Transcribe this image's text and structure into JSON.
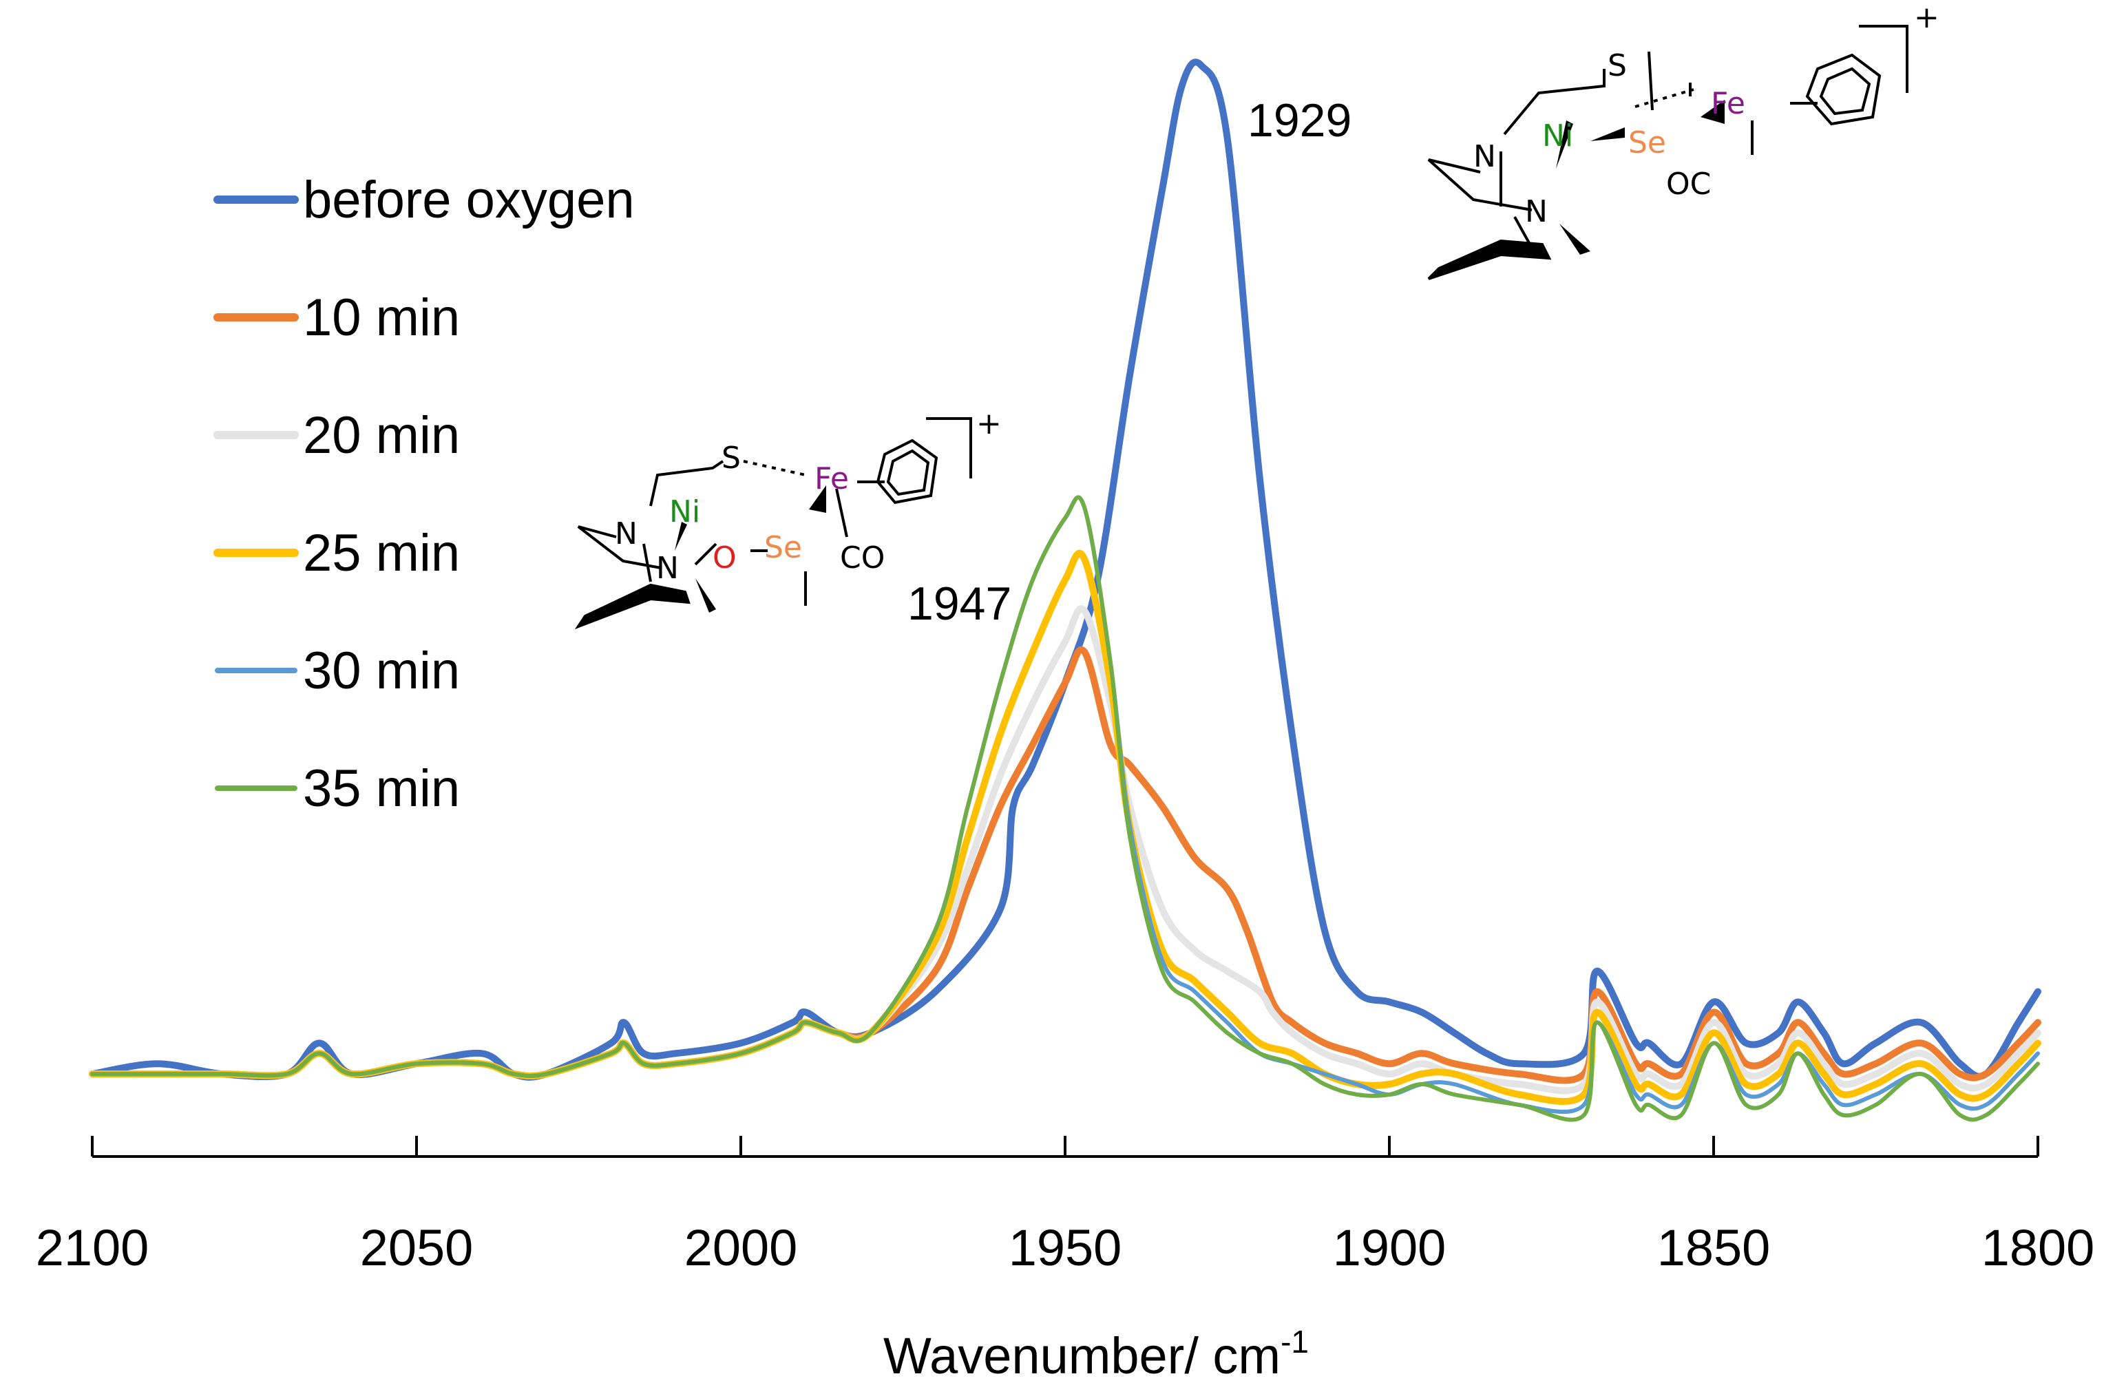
{
  "chart_data": {
    "type": "line",
    "title": "",
    "xlabel": "Wavenumber/ cm",
    "xlabel_superscript": "-1",
    "ylabel": "",
    "xlim": [
      2100,
      1800
    ],
    "x_reversed": true,
    "xticks": [
      2100,
      2050,
      2000,
      1950,
      1900,
      1850,
      1800
    ],
    "ylim": [
      0,
      1.0
    ],
    "grid": false,
    "legend_position": "top-left",
    "annotations": [
      {
        "text": "1929",
        "x": 1929
      },
      {
        "text": "1947",
        "x": 1947
      }
    ],
    "series": [
      {
        "name": "before oxygen",
        "color": "#4472C4",
        "x": [
          2100,
          2090,
          2080,
          2070,
          2065,
          2060,
          2050,
          2040,
          2035,
          2030,
          2020,
          2018,
          2015,
          2010,
          2000,
          1992,
          1990,
          1985,
          1980,
          1970,
          1960,
          1958,
          1955,
          1950,
          1945,
          1940,
          1935,
          1932,
          1929,
          1925,
          1920,
          1915,
          1910,
          1905,
          1900,
          1895,
          1890,
          1885,
          1880,
          1870,
          1868,
          1862,
          1860,
          1855,
          1850,
          1845,
          1840,
          1837,
          1833,
          1830,
          1825,
          1818,
          1812,
          1808,
          1803,
          1800
        ],
        "y": [
          0.02,
          0.03,
          0.02,
          0.02,
          0.05,
          0.02,
          0.03,
          0.04,
          0.02,
          0.02,
          0.05,
          0.07,
          0.04,
          0.04,
          0.05,
          0.07,
          0.08,
          0.06,
          0.06,
          0.1,
          0.18,
          0.28,
          0.32,
          0.4,
          0.5,
          0.7,
          0.88,
          0.98,
          1.0,
          0.93,
          0.6,
          0.35,
          0.16,
          0.1,
          0.09,
          0.08,
          0.06,
          0.04,
          0.03,
          0.04,
          0.12,
          0.05,
          0.05,
          0.03,
          0.09,
          0.05,
          0.06,
          0.09,
          0.06,
          0.03,
          0.05,
          0.07,
          0.03,
          0.02,
          0.07,
          0.1
        ]
      },
      {
        "name": "10 min",
        "color": "#ED7D31",
        "x": [
          2100,
          2090,
          2080,
          2070,
          2065,
          2060,
          2050,
          2040,
          2035,
          2030,
          2020,
          2018,
          2015,
          2010,
          2000,
          1992,
          1990,
          1985,
          1980,
          1970,
          1965,
          1960,
          1955,
          1950,
          1947,
          1943,
          1940,
          1935,
          1930,
          1925,
          1922,
          1918,
          1915,
          1910,
          1905,
          1900,
          1895,
          1890,
          1880,
          1870,
          1868,
          1862,
          1860,
          1855,
          1850,
          1845,
          1840,
          1837,
          1833,
          1830,
          1825,
          1818,
          1812,
          1808,
          1803,
          1800
        ],
        "y": [
          0.02,
          0.02,
          0.02,
          0.02,
          0.04,
          0.02,
          0.03,
          0.03,
          0.02,
          0.02,
          0.04,
          0.05,
          0.03,
          0.03,
          0.04,
          0.06,
          0.07,
          0.06,
          0.06,
          0.12,
          0.2,
          0.28,
          0.34,
          0.4,
          0.43,
          0.34,
          0.32,
          0.28,
          0.23,
          0.2,
          0.16,
          0.09,
          0.07,
          0.05,
          0.04,
          0.03,
          0.04,
          0.03,
          0.02,
          0.02,
          0.1,
          0.03,
          0.03,
          0.02,
          0.08,
          0.03,
          0.04,
          0.07,
          0.04,
          0.02,
          0.03,
          0.05,
          0.02,
          0.02,
          0.05,
          0.07
        ]
      },
      {
        "name": "20 min",
        "color": "#E4E4E4",
        "x": [
          2100,
          2090,
          2080,
          2070,
          2065,
          2060,
          2050,
          2040,
          2035,
          2030,
          2020,
          2018,
          2015,
          2010,
          2000,
          1992,
          1990,
          1985,
          1980,
          1970,
          1965,
          1960,
          1955,
          1950,
          1947,
          1943,
          1940,
          1935,
          1930,
          1925,
          1920,
          1918,
          1915,
          1910,
          1905,
          1900,
          1895,
          1890,
          1880,
          1870,
          1868,
          1862,
          1860,
          1855,
          1850,
          1845,
          1840,
          1837,
          1833,
          1830,
          1825,
          1818,
          1812,
          1808,
          1803,
          1800
        ],
        "y": [
          0.02,
          0.02,
          0.02,
          0.02,
          0.04,
          0.02,
          0.03,
          0.03,
          0.02,
          0.02,
          0.04,
          0.05,
          0.03,
          0.03,
          0.04,
          0.06,
          0.07,
          0.06,
          0.06,
          0.14,
          0.22,
          0.31,
          0.38,
          0.44,
          0.47,
          0.38,
          0.28,
          0.18,
          0.14,
          0.12,
          0.1,
          0.08,
          0.06,
          0.04,
          0.03,
          0.02,
          0.03,
          0.02,
          0.01,
          0.01,
          0.09,
          0.02,
          0.02,
          0.01,
          0.07,
          0.02,
          0.03,
          0.06,
          0.03,
          0.01,
          0.02,
          0.04,
          0.01,
          0.01,
          0.04,
          0.06
        ]
      },
      {
        "name": "25 min",
        "color": "#FFC000",
        "x": [
          2100,
          2090,
          2080,
          2070,
          2065,
          2060,
          2050,
          2040,
          2035,
          2030,
          2020,
          2018,
          2015,
          2010,
          2000,
          1992,
          1990,
          1985,
          1980,
          1970,
          1965,
          1960,
          1955,
          1950,
          1947,
          1943,
          1940,
          1935,
          1930,
          1925,
          1920,
          1915,
          1910,
          1905,
          1900,
          1895,
          1890,
          1880,
          1870,
          1868,
          1862,
          1860,
          1855,
          1850,
          1845,
          1840,
          1837,
          1833,
          1830,
          1825,
          1818,
          1812,
          1808,
          1803,
          1800
        ],
        "y": [
          0.02,
          0.02,
          0.02,
          0.02,
          0.04,
          0.02,
          0.03,
          0.03,
          0.02,
          0.02,
          0.04,
          0.05,
          0.03,
          0.03,
          0.04,
          0.06,
          0.07,
          0.06,
          0.06,
          0.15,
          0.25,
          0.35,
          0.43,
          0.5,
          0.52,
          0.4,
          0.26,
          0.14,
          0.11,
          0.08,
          0.05,
          0.04,
          0.02,
          0.01,
          0.01,
          0.02,
          0.02,
          0.0,
          0.0,
          0.08,
          0.01,
          0.01,
          0.0,
          0.06,
          0.01,
          0.02,
          0.05,
          0.02,
          0.0,
          0.01,
          0.03,
          0.0,
          0.0,
          0.03,
          0.05
        ]
      },
      {
        "name": "30 min",
        "color": "#5B9BD5",
        "x": [
          2100,
          2090,
          2080,
          2070,
          2065,
          2060,
          2050,
          2040,
          2035,
          2030,
          2020,
          2018,
          2015,
          2010,
          2000,
          1992,
          1990,
          1985,
          1980,
          1970,
          1965,
          1960,
          1955,
          1950,
          1947,
          1943,
          1940,
          1935,
          1930,
          1925,
          1920,
          1915,
          1910,
          1905,
          1900,
          1895,
          1890,
          1880,
          1870,
          1868,
          1862,
          1860,
          1855,
          1850,
          1845,
          1840,
          1837,
          1833,
          1830,
          1825,
          1818,
          1812,
          1808,
          1803,
          1800
        ],
        "y": [
          0.02,
          0.02,
          0.02,
          0.02,
          0.04,
          0.02,
          0.03,
          0.03,
          0.02,
          0.02,
          0.04,
          0.05,
          0.03,
          0.03,
          0.04,
          0.06,
          0.07,
          0.06,
          0.06,
          0.16,
          0.28,
          0.4,
          0.5,
          0.56,
          0.57,
          0.42,
          0.26,
          0.13,
          0.1,
          0.07,
          0.04,
          0.03,
          0.02,
          0.01,
          0.0,
          0.01,
          0.01,
          -0.01,
          -0.01,
          0.07,
          0.0,
          0.0,
          -0.01,
          0.05,
          0.0,
          0.01,
          0.04,
          0.01,
          -0.01,
          0.0,
          0.02,
          -0.01,
          -0.01,
          0.02,
          0.04
        ]
      },
      {
        "name": "35 min",
        "color": "#70AD47",
        "x": [
          2100,
          2090,
          2080,
          2070,
          2065,
          2060,
          2050,
          2040,
          2035,
          2030,
          2020,
          2018,
          2015,
          2010,
          2000,
          1992,
          1990,
          1985,
          1980,
          1970,
          1965,
          1960,
          1955,
          1950,
          1947,
          1943,
          1940,
          1935,
          1930,
          1925,
          1920,
          1915,
          1910,
          1905,
          1900,
          1895,
          1890,
          1880,
          1870,
          1868,
          1862,
          1860,
          1855,
          1850,
          1845,
          1840,
          1837,
          1833,
          1830,
          1825,
          1818,
          1812,
          1808,
          1803,
          1800
        ],
        "y": [
          0.02,
          0.02,
          0.02,
          0.02,
          0.04,
          0.02,
          0.03,
          0.03,
          0.02,
          0.02,
          0.04,
          0.05,
          0.03,
          0.03,
          0.04,
          0.06,
          0.07,
          0.06,
          0.06,
          0.16,
          0.28,
          0.4,
          0.5,
          0.56,
          0.57,
          0.42,
          0.25,
          0.12,
          0.09,
          0.06,
          0.04,
          0.03,
          0.01,
          0.0,
          0.0,
          0.01,
          0.0,
          -0.01,
          -0.02,
          0.07,
          -0.01,
          -0.01,
          -0.02,
          0.05,
          -0.01,
          0.0,
          0.04,
          0.0,
          -0.02,
          -0.01,
          0.02,
          -0.02,
          -0.02,
          0.01,
          0.03
        ]
      }
    ]
  },
  "molecules": {
    "top_right": {
      "atoms": [
        "S",
        "N",
        "Ni",
        "Se",
        "Fe",
        "N",
        "OC"
      ],
      "charge": "+"
    },
    "middle_left": {
      "atoms": [
        "S",
        "N",
        "Ni",
        "Fe",
        "N",
        "O",
        "Se",
        "CO"
      ],
      "charge": "+"
    }
  },
  "colors": {
    "ni": "#1C8C1C",
    "fe": "#8B1A89",
    "se": "#EE8A4E",
    "o": "#E02020"
  }
}
